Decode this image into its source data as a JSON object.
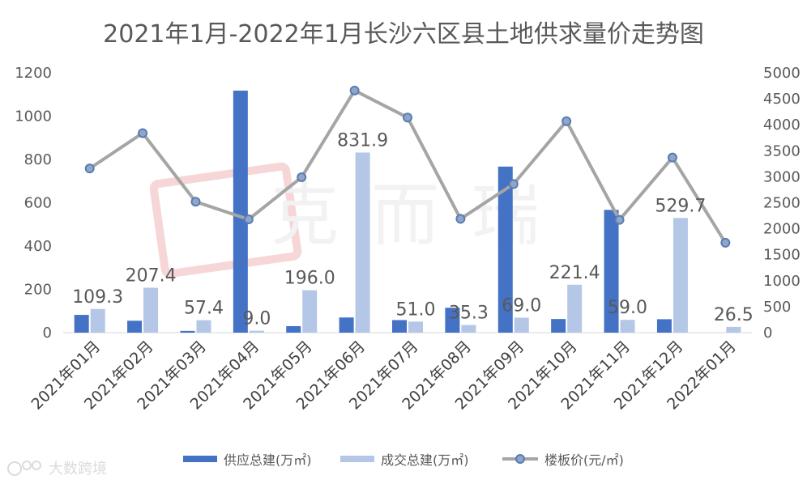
{
  "colors": {
    "supply": "#4472C4",
    "deal": "#B4C7E7",
    "price_line": "#A5A5A5",
    "price_marker_fill": "#8FA6C9",
    "price_marker_stroke": "#5B7BB0",
    "text": "#595959"
  },
  "watermark": {
    "stamp": "克而瑞",
    "source": "大数跨境"
  },
  "chart_data": {
    "type": "bar",
    "title": "2021年1月-2022年1月长沙六区县土地供求量价走势图",
    "categories": [
      "2021年01月",
      "2021年02月",
      "2021年03月",
      "2021年04月",
      "2021年05月",
      "2021年06月",
      "2021年07月",
      "2021年08月",
      "2021年09月",
      "2021年10月",
      "2021年11月",
      "2021年12月",
      "2022年01月"
    ],
    "y_left": {
      "min": 0,
      "max": 1200,
      "ticks": [
        "0",
        "200",
        "400",
        "600",
        "800",
        "1000",
        "1200"
      ]
    },
    "y_right": {
      "min": 0,
      "max": 5000,
      "ticks": [
        "0",
        "500",
        "1000",
        "1500",
        "2000",
        "2500",
        "3000",
        "3500",
        "4000",
        "4500",
        "5000"
      ]
    },
    "series": [
      {
        "name": "供应总建(万㎡)",
        "type": "bar",
        "axis": "left",
        "values": [
          82,
          55,
          8,
          1118,
          30,
          70,
          58,
          115,
          767,
          63,
          567,
          62,
          0
        ]
      },
      {
        "name": "成交总建(万㎡)",
        "type": "bar",
        "axis": "left",
        "values": [
          109.3,
          207.4,
          57.4,
          9.0,
          196.0,
          831.9,
          51.0,
          35.3,
          69.0,
          221.4,
          59.0,
          529.7,
          26.5
        ],
        "labels": [
          "109.3",
          "207.4",
          "57.4",
          "9.0",
          "196.0",
          "831.9",
          "51.0",
          "35.3",
          "69.0",
          "221.4",
          "59.0",
          "529.7",
          "26.5"
        ]
      },
      {
        "name": "楼板价(元/㎡)",
        "type": "line",
        "axis": "right",
        "values": [
          3160,
          3840,
          2520,
          2180,
          2990,
          4660,
          4140,
          2190,
          2860,
          4070,
          2170,
          3370,
          1730
        ]
      }
    ],
    "legend_position": "bottom",
    "grid": false
  }
}
